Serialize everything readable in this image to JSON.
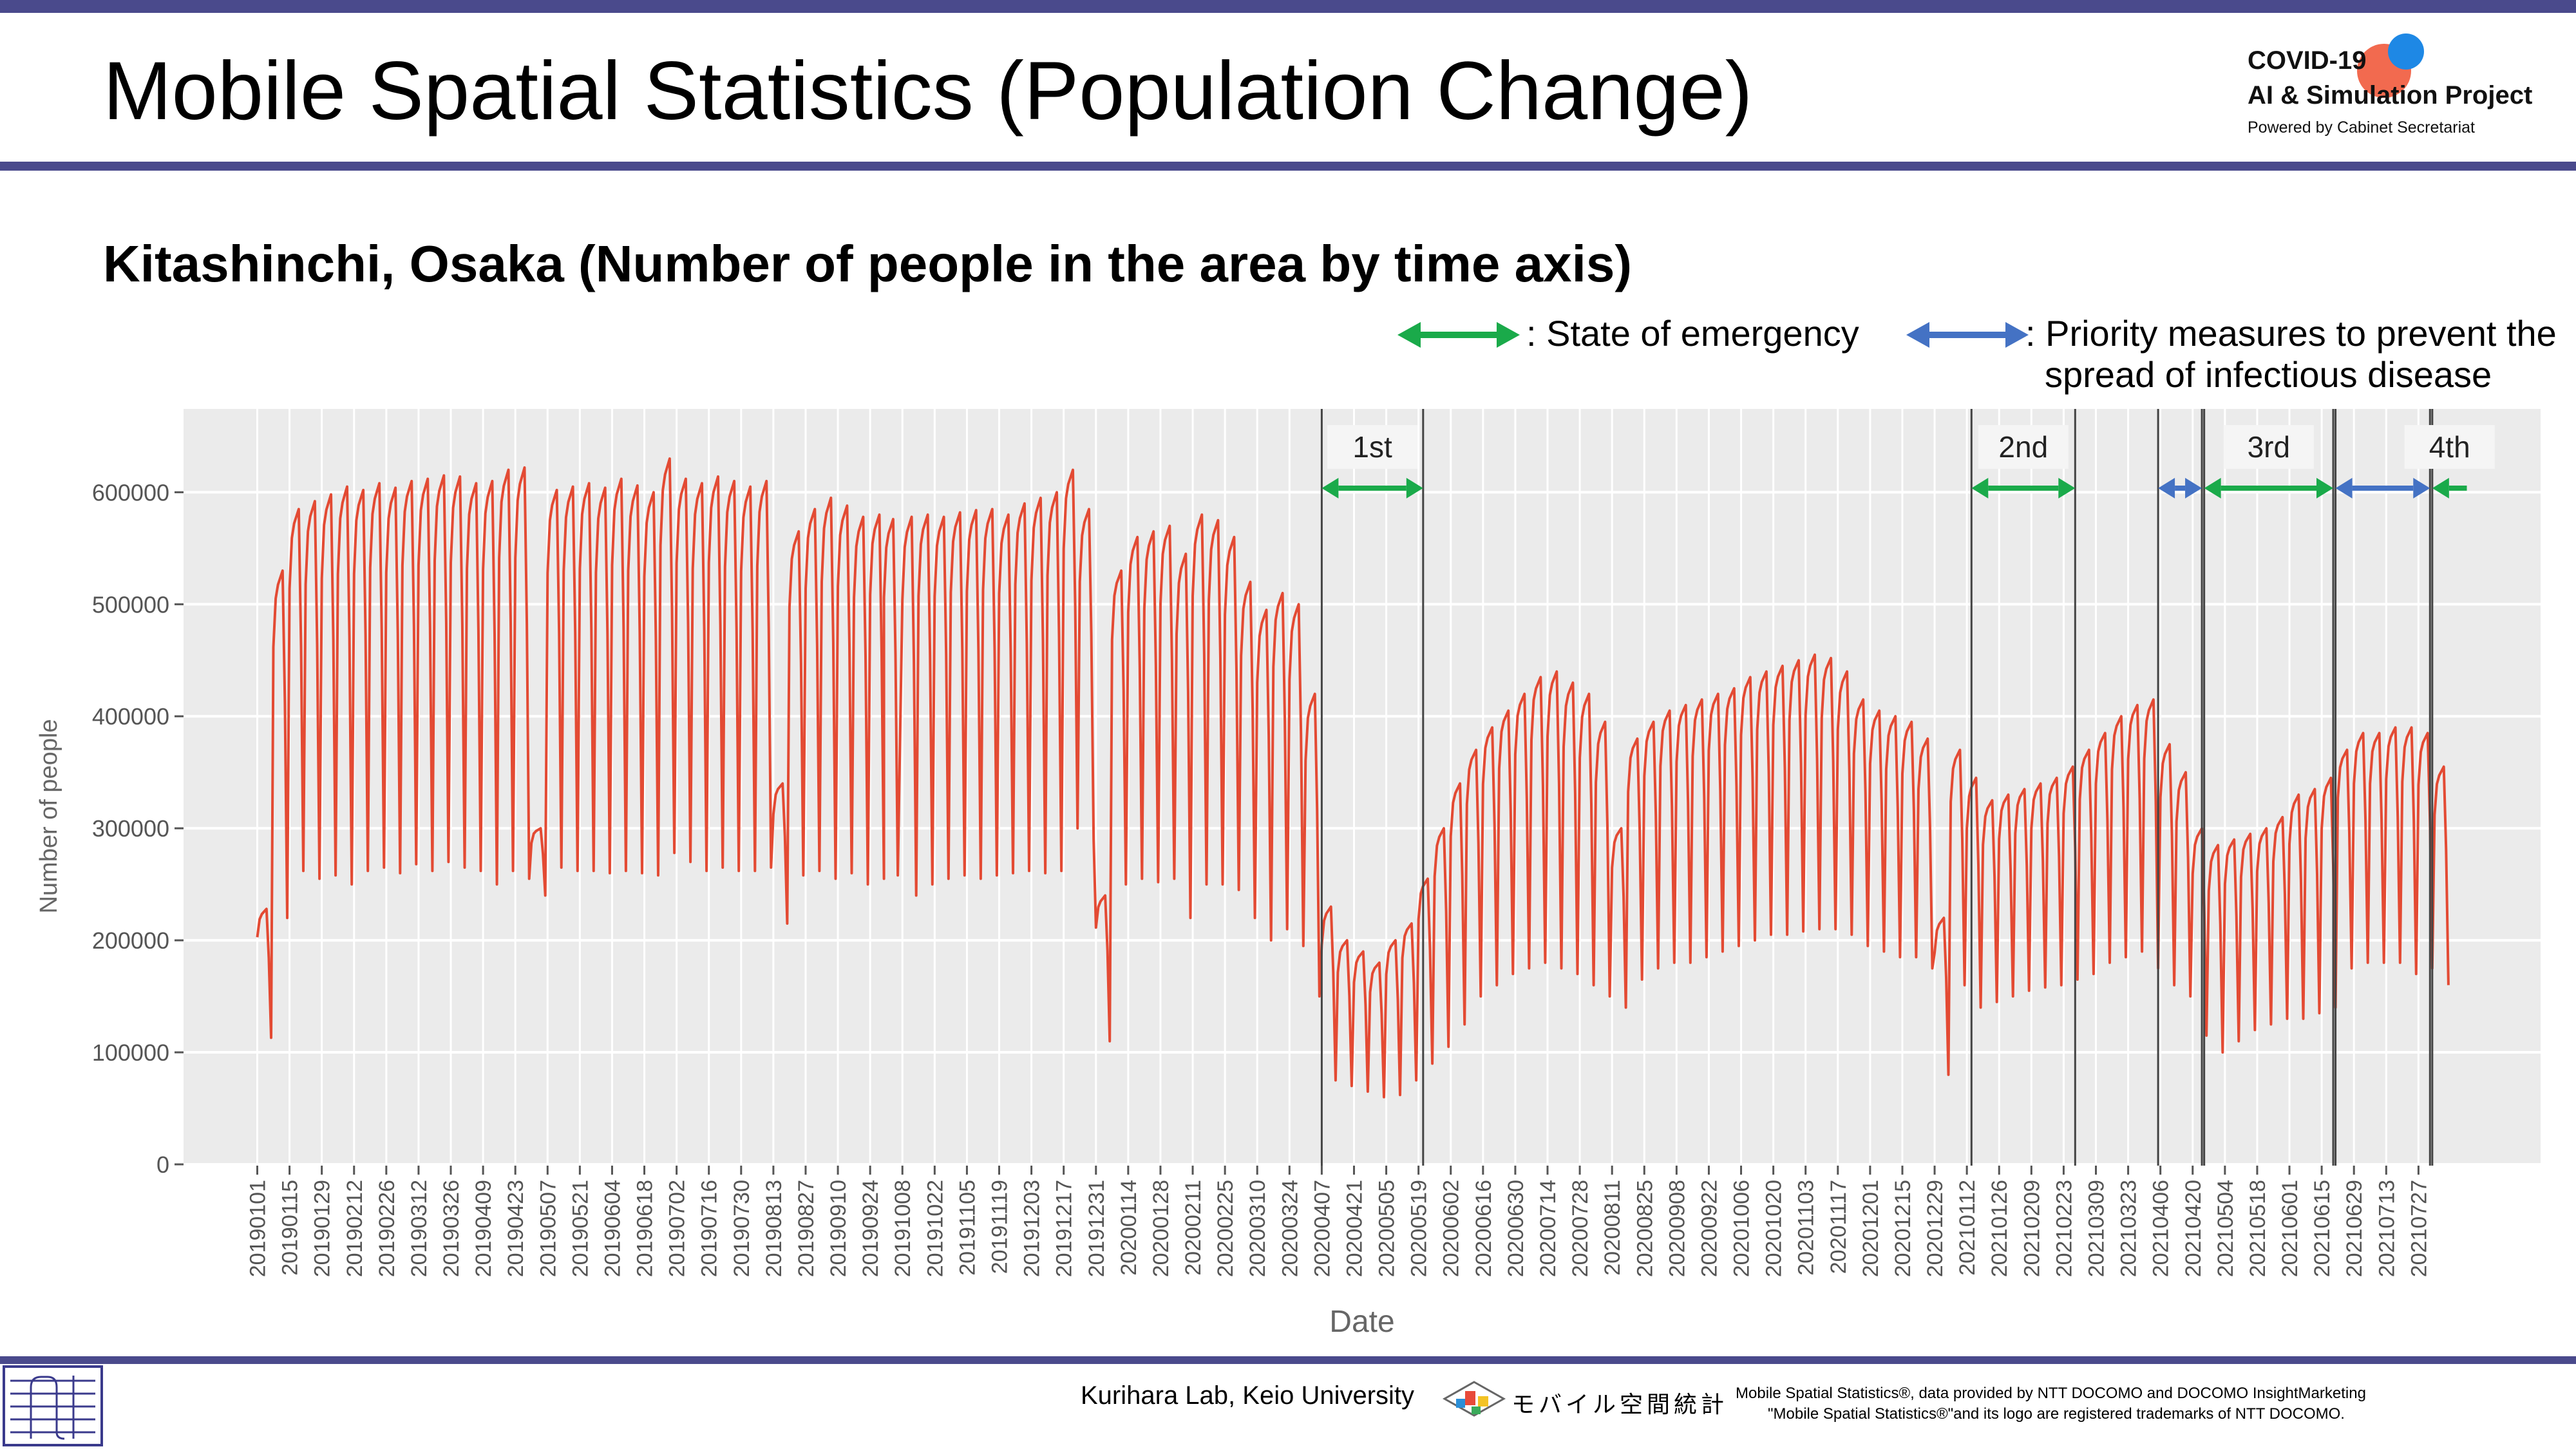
{
  "header": {
    "title": "Mobile Spatial Statistics (Population Change)",
    "logo_line1": "COVID-19",
    "logo_line2": "AI & Simulation Project",
    "logo_line3": "Powered by Cabinet Secretariat"
  },
  "subtitle": "Kitashinchi, Osaka (Number of people in the area by time axis)",
  "legend": {
    "emergency": ": State of emergency",
    "priority_line1": ": Priority measures to prevent the",
    "priority_line2": "spread of infectious disease",
    "colors": {
      "emergency": "#1aaa4a",
      "priority": "#4472c4"
    }
  },
  "chart_data": {
    "type": "line",
    "xlabel": "Date",
    "ylabel": "Number of people",
    "ylim": [
      0,
      660000
    ],
    "yticks": [
      0,
      100000,
      200000,
      300000,
      400000,
      500000,
      600000
    ],
    "ytick_labels": [
      "0",
      "100000",
      "200000",
      "300000",
      "400000",
      "500000",
      "600000"
    ],
    "x_range": [
      "20190101",
      "20210817"
    ],
    "line_color": "#e34a33",
    "xtick_labels": [
      "20190101",
      "20190115",
      "20190129",
      "20190212",
      "20190226",
      "20190312",
      "20190326",
      "20190409",
      "20190423",
      "20190507",
      "20190521",
      "20190604",
      "20190618",
      "20190702",
      "20190716",
      "20190730",
      "20190813",
      "20190827",
      "20190910",
      "20190924",
      "20191008",
      "20191022",
      "20191105",
      "20191119",
      "20191203",
      "20191217",
      "20191231",
      "20200114",
      "20200128",
      "20200211",
      "20200225",
      "20200310",
      "20200324",
      "20200407",
      "20200421",
      "20200505",
      "20200519",
      "20200602",
      "20200616",
      "20200630",
      "20200714",
      "20200728",
      "20200811",
      "20200825",
      "20200908",
      "20200922",
      "20201006",
      "20201020",
      "20201103",
      "20201117",
      "20201201",
      "20201215",
      "20201229",
      "20210112",
      "20210126",
      "20210209",
      "20210223",
      "20210309",
      "20210323",
      "20210406",
      "20210420",
      "20210504",
      "20210518",
      "20210601",
      "20210615",
      "20210629",
      "20210713",
      "20210727"
    ],
    "weekly": [
      {
        "week": "20190101",
        "high": 228000,
        "low": 113000
      },
      {
        "week": "20190108",
        "high": 530000,
        "low": 220000
      },
      {
        "week": "20190115",
        "high": 585000,
        "low": 262000
      },
      {
        "week": "20190122",
        "high": 592000,
        "low": 255000
      },
      {
        "week": "20190129",
        "high": 598000,
        "low": 258000
      },
      {
        "week": "20190205",
        "high": 605000,
        "low": 250000
      },
      {
        "week": "20190212",
        "high": 602000,
        "low": 262000
      },
      {
        "week": "20190219",
        "high": 608000,
        "low": 265000
      },
      {
        "week": "20190226",
        "high": 604000,
        "low": 260000
      },
      {
        "week": "20190305",
        "high": 610000,
        "low": 268000
      },
      {
        "week": "20190312",
        "high": 612000,
        "low": 262000
      },
      {
        "week": "20190319",
        "high": 615000,
        "low": 270000
      },
      {
        "week": "20190326",
        "high": 614000,
        "low": 265000
      },
      {
        "week": "20190402",
        "high": 608000,
        "low": 262000
      },
      {
        "week": "20190409",
        "high": 610000,
        "low": 250000
      },
      {
        "week": "20190416",
        "high": 620000,
        "low": 262000
      },
      {
        "week": "20190423",
        "high": 622000,
        "low": 255000
      },
      {
        "week": "20190430",
        "high": 300000,
        "low": 240000
      },
      {
        "week": "20190507",
        "high": 602000,
        "low": 265000
      },
      {
        "week": "20190514",
        "high": 605000,
        "low": 262000
      },
      {
        "week": "20190521",
        "high": 608000,
        "low": 262000
      },
      {
        "week": "20190528",
        "high": 604000,
        "low": 260000
      },
      {
        "week": "20190604",
        "high": 612000,
        "low": 262000
      },
      {
        "week": "20190611",
        "high": 606000,
        "low": 260000
      },
      {
        "week": "20190618",
        "high": 600000,
        "low": 258000
      },
      {
        "week": "20190625",
        "high": 630000,
        "low": 278000
      },
      {
        "week": "20190702",
        "high": 612000,
        "low": 270000
      },
      {
        "week": "20190709",
        "high": 608000,
        "low": 262000
      },
      {
        "week": "20190716",
        "high": 614000,
        "low": 265000
      },
      {
        "week": "20190723",
        "high": 610000,
        "low": 262000
      },
      {
        "week": "20190730",
        "high": 605000,
        "low": 262000
      },
      {
        "week": "20190806",
        "high": 610000,
        "low": 265000
      },
      {
        "week": "20190813",
        "high": 340000,
        "low": 215000
      },
      {
        "week": "20190820",
        "high": 565000,
        "low": 258000
      },
      {
        "week": "20190827",
        "high": 585000,
        "low": 262000
      },
      {
        "week": "20190903",
        "high": 595000,
        "low": 255000
      },
      {
        "week": "20190910",
        "high": 588000,
        "low": 260000
      },
      {
        "week": "20190917",
        "high": 578000,
        "low": 250000
      },
      {
        "week": "20190924",
        "high": 580000,
        "low": 255000
      },
      {
        "week": "20190930",
        "high": 576000,
        "low": 258000
      },
      {
        "week": "20191008",
        "high": 578000,
        "low": 240000
      },
      {
        "week": "20191015",
        "high": 580000,
        "low": 250000
      },
      {
        "week": "20191022",
        "high": 578000,
        "low": 255000
      },
      {
        "week": "20191029",
        "high": 582000,
        "low": 258000
      },
      {
        "week": "20191105",
        "high": 584000,
        "low": 255000
      },
      {
        "week": "20191112",
        "high": 585000,
        "low": 258000
      },
      {
        "week": "20191119",
        "high": 580000,
        "low": 260000
      },
      {
        "week": "20191126",
        "high": 590000,
        "low": 262000
      },
      {
        "week": "20191203",
        "high": 595000,
        "low": 260000
      },
      {
        "week": "20191210",
        "high": 600000,
        "low": 262000
      },
      {
        "week": "20191217",
        "high": 620000,
        "low": 300000
      },
      {
        "week": "20191224",
        "high": 585000,
        "low": 290000
      },
      {
        "week": "20191231",
        "high": 240000,
        "low": 110000
      },
      {
        "week": "20200107",
        "high": 530000,
        "low": 250000
      },
      {
        "week": "20200114",
        "high": 560000,
        "low": 255000
      },
      {
        "week": "20200121",
        "high": 565000,
        "low": 252000
      },
      {
        "week": "20200128",
        "high": 570000,
        "low": 255000
      },
      {
        "week": "20200204",
        "high": 545000,
        "low": 220000
      },
      {
        "week": "20200211",
        "high": 580000,
        "low": 250000
      },
      {
        "week": "20200218",
        "high": 575000,
        "low": 250000
      },
      {
        "week": "20200225",
        "high": 560000,
        "low": 245000
      },
      {
        "week": "20200303",
        "high": 520000,
        "low": 220000
      },
      {
        "week": "20200310",
        "high": 495000,
        "low": 200000
      },
      {
        "week": "20200317",
        "high": 510000,
        "low": 210000
      },
      {
        "week": "20200324",
        "high": 500000,
        "low": 195000
      },
      {
        "week": "20200331",
        "high": 420000,
        "low": 150000
      },
      {
        "week": "20200407",
        "high": 230000,
        "low": 75000
      },
      {
        "week": "20200414",
        "high": 200000,
        "low": 70000
      },
      {
        "week": "20200421",
        "high": 190000,
        "low": 65000
      },
      {
        "week": "20200428",
        "high": 180000,
        "low": 60000
      },
      {
        "week": "20200505",
        "high": 200000,
        "low": 62000
      },
      {
        "week": "20200512",
        "high": 215000,
        "low": 75000
      },
      {
        "week": "20200519",
        "high": 255000,
        "low": 90000
      },
      {
        "week": "20200526",
        "high": 300000,
        "low": 105000
      },
      {
        "week": "20200602",
        "high": 340000,
        "low": 125000
      },
      {
        "week": "20200609",
        "high": 370000,
        "low": 150000
      },
      {
        "week": "20200616",
        "high": 390000,
        "low": 160000
      },
      {
        "week": "20200623",
        "high": 405000,
        "low": 170000
      },
      {
        "week": "20200630",
        "high": 420000,
        "low": 175000
      },
      {
        "week": "20200707",
        "high": 435000,
        "low": 180000
      },
      {
        "week": "20200714",
        "high": 440000,
        "low": 175000
      },
      {
        "week": "20200721",
        "high": 430000,
        "low": 170000
      },
      {
        "week": "20200728",
        "high": 420000,
        "low": 160000
      },
      {
        "week": "20200804",
        "high": 395000,
        "low": 150000
      },
      {
        "week": "20200811",
        "high": 300000,
        "low": 140000
      },
      {
        "week": "20200818",
        "high": 380000,
        "low": 165000
      },
      {
        "week": "20200825",
        "high": 395000,
        "low": 175000
      },
      {
        "week": "20200901",
        "high": 405000,
        "low": 180000
      },
      {
        "week": "20200908",
        "high": 410000,
        "low": 180000
      },
      {
        "week": "20200915",
        "high": 415000,
        "low": 185000
      },
      {
        "week": "20200922",
        "high": 420000,
        "low": 190000
      },
      {
        "week": "20200929",
        "high": 425000,
        "low": 195000
      },
      {
        "week": "20201006",
        "high": 435000,
        "low": 200000
      },
      {
        "week": "20201013",
        "high": 440000,
        "low": 205000
      },
      {
        "week": "20201020",
        "high": 445000,
        "low": 205000
      },
      {
        "week": "20201027",
        "high": 450000,
        "low": 208000
      },
      {
        "week": "20201103",
        "high": 455000,
        "low": 210000
      },
      {
        "week": "20201110",
        "high": 452000,
        "low": 210000
      },
      {
        "week": "20201117",
        "high": 440000,
        "low": 205000
      },
      {
        "week": "20201124",
        "high": 415000,
        "low": 195000
      },
      {
        "week": "20201201",
        "high": 405000,
        "low": 190000
      },
      {
        "week": "20201208",
        "high": 400000,
        "low": 185000
      },
      {
        "week": "20201215",
        "high": 395000,
        "low": 185000
      },
      {
        "week": "20201222",
        "high": 380000,
        "low": 175000
      },
      {
        "week": "20201229",
        "high": 220000,
        "low": 80000
      },
      {
        "week": "20210105",
        "high": 370000,
        "low": 160000
      },
      {
        "week": "20210112",
        "high": 345000,
        "low": 140000
      },
      {
        "week": "20210119",
        "high": 325000,
        "low": 145000
      },
      {
        "week": "20210126",
        "high": 330000,
        "low": 150000
      },
      {
        "week": "20210202",
        "high": 335000,
        "low": 155000
      },
      {
        "week": "20210209",
        "high": 340000,
        "low": 158000
      },
      {
        "week": "20210216",
        "high": 345000,
        "low": 160000
      },
      {
        "week": "20210223",
        "high": 355000,
        "low": 165000
      },
      {
        "week": "20210302",
        "high": 370000,
        "low": 170000
      },
      {
        "week": "20210309",
        "high": 385000,
        "low": 180000
      },
      {
        "week": "20210316",
        "high": 400000,
        "low": 185000
      },
      {
        "week": "20210323",
        "high": 410000,
        "low": 190000
      },
      {
        "week": "20210330",
        "high": 415000,
        "low": 175000
      },
      {
        "week": "20210406",
        "high": 375000,
        "low": 160000
      },
      {
        "week": "20210413",
        "high": 350000,
        "low": 150000
      },
      {
        "week": "20210420",
        "high": 300000,
        "low": 115000
      },
      {
        "week": "20210427",
        "high": 285000,
        "low": 100000
      },
      {
        "week": "20210504",
        "high": 290000,
        "low": 110000
      },
      {
        "week": "20210511",
        "high": 295000,
        "low": 120000
      },
      {
        "week": "20210518",
        "high": 300000,
        "low": 125000
      },
      {
        "week": "20210525",
        "high": 310000,
        "low": 130000
      },
      {
        "week": "20210601",
        "high": 330000,
        "low": 130000
      },
      {
        "week": "20210608",
        "high": 335000,
        "low": 135000
      },
      {
        "week": "20210615",
        "high": 345000,
        "low": 140000
      },
      {
        "week": "20210622",
        "high": 370000,
        "low": 175000
      },
      {
        "week": "20210629",
        "high": 385000,
        "low": 180000
      },
      {
        "week": "20210706",
        "high": 385000,
        "low": 180000
      },
      {
        "week": "20210713",
        "high": 390000,
        "low": 180000
      },
      {
        "week": "20210720",
        "high": 390000,
        "low": 170000
      },
      {
        "week": "20210727",
        "high": 385000,
        "low": 175000
      },
      {
        "week": "20210803",
        "high": 355000,
        "low": 160000
      }
    ],
    "periods": [
      {
        "type": "emergency",
        "label": "1st",
        "start": "20200407",
        "end": "20200521"
      },
      {
        "type": "emergency",
        "label": "2nd",
        "start": "20210114",
        "end": "20210228"
      },
      {
        "type": "priority",
        "label": "",
        "start": "20210405",
        "end": "20210424"
      },
      {
        "type": "emergency",
        "label": "3rd",
        "start": "20210425",
        "end": "20210620"
      },
      {
        "type": "priority",
        "label": "",
        "start": "20210621",
        "end": "20210801"
      },
      {
        "type": "emergency",
        "label": "4th",
        "start": "20210802",
        "end": "20210817"
      }
    ]
  },
  "footer": {
    "lab": "Kurihara Lab, Keio University",
    "mobile_logo_text": "モバイル空間統計",
    "notice_line1": "Mobile Spatial Statistics®, data provided by NTT DOCOMO and DOCOMO InsightMarketing",
    "notice_line2": "\"Mobile Spatial Statistics®\"and its logo are registered trademarks of NTT DOCOMO."
  }
}
